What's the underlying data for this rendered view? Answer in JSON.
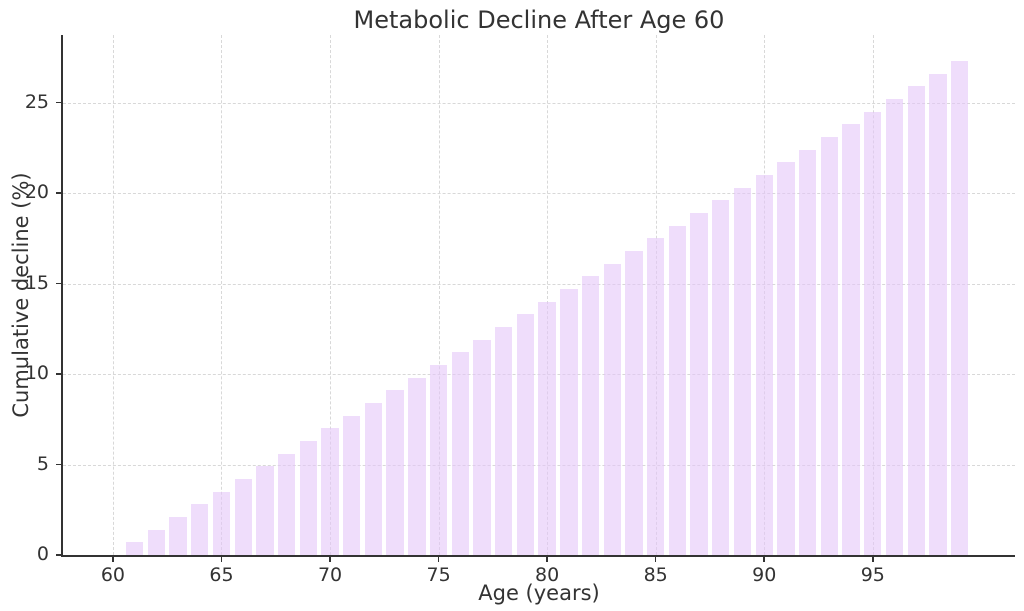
{
  "chart_data": {
    "type": "bar",
    "title": "Metabolic Decline After Age 60",
    "xlabel": "Age (years)",
    "ylabel": "Cumulative decline (%)",
    "categories": [
      60,
      61,
      62,
      63,
      64,
      65,
      66,
      67,
      68,
      69,
      70,
      71,
      72,
      73,
      74,
      75,
      76,
      77,
      78,
      79,
      80,
      81,
      82,
      83,
      84,
      85,
      86,
      87,
      88,
      89,
      90,
      91,
      92,
      93,
      94,
      95,
      96,
      97,
      98,
      99
    ],
    "values": [
      0.0,
      0.7,
      1.4,
      2.1,
      2.8,
      3.5,
      4.2,
      4.9,
      5.6,
      6.3,
      7.0,
      7.7,
      8.4,
      9.1,
      9.8,
      10.5,
      11.2,
      11.9,
      12.6,
      13.3,
      14.0,
      14.7,
      15.4,
      16.1,
      16.8,
      17.5,
      18.2,
      18.9,
      19.6,
      20.3,
      21.0,
      21.7,
      22.4,
      23.1,
      23.8,
      24.5,
      25.2,
      25.9,
      26.6,
      27.3
    ],
    "xticks": [
      60,
      65,
      70,
      75,
      80,
      85,
      90,
      95
    ],
    "yticks": [
      0,
      5,
      10,
      15,
      20,
      25
    ],
    "xlim": [
      57.7,
      101.55
    ],
    "ylim": [
      0,
      28.73
    ],
    "bar_width_ratio": 0.8,
    "grid": "dashed-both-axes",
    "legend": "none",
    "colors": {
      "bar_fill": "rgba(229,199,249,0.6)",
      "axis_text": "#333333",
      "spine": "#333333",
      "gridline": "#d8d8d8",
      "background": "#ffffff"
    }
  }
}
